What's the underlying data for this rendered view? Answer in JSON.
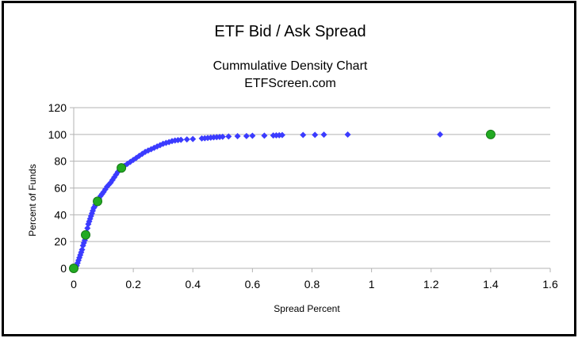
{
  "chart_data": {
    "type": "scatter",
    "title": "ETF Bid / Ask Spread",
    "subtitle_lines": [
      "Cummulative Density Chart",
      "ETFScreen.com"
    ],
    "xlabel": "Spread Percent",
    "ylabel": "Percent of Funds",
    "xlim": [
      0,
      1.6
    ],
    "ylim": [
      0,
      120
    ],
    "x_ticks": [
      "0",
      "0.2",
      "0.4",
      "0.6",
      "0.8",
      "1",
      "1.2",
      "1.4",
      "1.6"
    ],
    "y_ticks": [
      "0",
      "20",
      "40",
      "60",
      "80",
      "100",
      "120"
    ],
    "grid": "horizontal",
    "legend": "none",
    "series": [
      {
        "color": "#3b3bff",
        "marker": "diamond",
        "points": [
          [
            0.0,
            0
          ],
          [
            0.005,
            1
          ],
          [
            0.01,
            2
          ],
          [
            0.013,
            4
          ],
          [
            0.016,
            6
          ],
          [
            0.019,
            8
          ],
          [
            0.022,
            10
          ],
          [
            0.025,
            12
          ],
          [
            0.028,
            14
          ],
          [
            0.031,
            17
          ],
          [
            0.034,
            19
          ],
          [
            0.037,
            21
          ],
          [
            0.04,
            24
          ],
          [
            0.043,
            27
          ],
          [
            0.046,
            30
          ],
          [
            0.049,
            33
          ],
          [
            0.052,
            35
          ],
          [
            0.055,
            37
          ],
          [
            0.058,
            39
          ],
          [
            0.061,
            41
          ],
          [
            0.064,
            43
          ],
          [
            0.067,
            45
          ],
          [
            0.07,
            46
          ],
          [
            0.073,
            47.5
          ],
          [
            0.077,
            49
          ],
          [
            0.08,
            50
          ],
          [
            0.085,
            52
          ],
          [
            0.09,
            54
          ],
          [
            0.095,
            55.5
          ],
          [
            0.1,
            57
          ],
          [
            0.106,
            59
          ],
          [
            0.112,
            61
          ],
          [
            0.118,
            62.5
          ],
          [
            0.124,
            64
          ],
          [
            0.13,
            66
          ],
          [
            0.136,
            68
          ],
          [
            0.142,
            70
          ],
          [
            0.148,
            72
          ],
          [
            0.154,
            73.5
          ],
          [
            0.16,
            75
          ],
          [
            0.17,
            76.5
          ],
          [
            0.18,
            78
          ],
          [
            0.19,
            79.5
          ],
          [
            0.2,
            81
          ],
          [
            0.21,
            82.5
          ],
          [
            0.22,
            84
          ],
          [
            0.23,
            85.5
          ],
          [
            0.24,
            87
          ],
          [
            0.25,
            88
          ],
          [
            0.26,
            89
          ],
          [
            0.27,
            90
          ],
          [
            0.28,
            91
          ],
          [
            0.29,
            92
          ],
          [
            0.3,
            93
          ],
          [
            0.31,
            93.7
          ],
          [
            0.32,
            94.3
          ],
          [
            0.33,
            95
          ],
          [
            0.34,
            95.5
          ],
          [
            0.35,
            95.8
          ],
          [
            0.36,
            96
          ],
          [
            0.38,
            96.3
          ],
          [
            0.4,
            96.6
          ],
          [
            0.43,
            97
          ],
          [
            0.44,
            97.2
          ],
          [
            0.45,
            97.4
          ],
          [
            0.46,
            97.6
          ],
          [
            0.47,
            97.8
          ],
          [
            0.48,
            98
          ],
          [
            0.49,
            98.1
          ],
          [
            0.5,
            98.3
          ],
          [
            0.52,
            98.5
          ],
          [
            0.55,
            98.7
          ],
          [
            0.58,
            98.8
          ],
          [
            0.6,
            99
          ],
          [
            0.64,
            99.1
          ],
          [
            0.67,
            99.2
          ],
          [
            0.68,
            99.3
          ],
          [
            0.69,
            99.4
          ],
          [
            0.7,
            99.5
          ],
          [
            0.77,
            99.6
          ],
          [
            0.81,
            99.7
          ],
          [
            0.84,
            99.8
          ],
          [
            0.92,
            99.9
          ],
          [
            1.23,
            100
          ]
        ]
      },
      {
        "color": "#22aa22",
        "marker": "circle",
        "points": [
          [
            0.0,
            0
          ],
          [
            0.04,
            25
          ],
          [
            0.08,
            50
          ],
          [
            0.16,
            75
          ],
          [
            1.4,
            100
          ]
        ]
      }
    ]
  }
}
